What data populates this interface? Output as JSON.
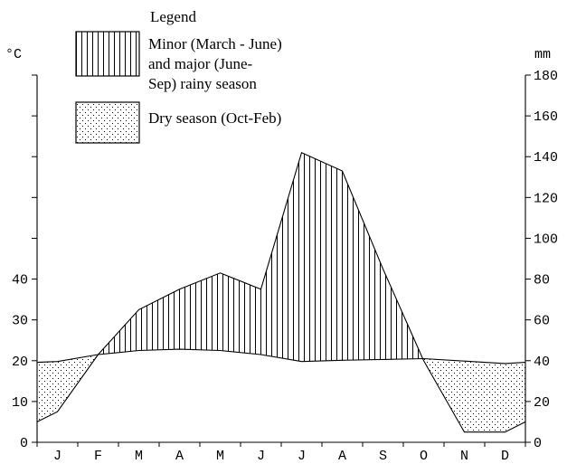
{
  "chart_data": {
    "type": "climate-diagram",
    "title": "",
    "left_unit": "°C",
    "right_unit": "mm",
    "months": [
      "J",
      "F",
      "M",
      "A",
      "M",
      "J",
      "J",
      "A",
      "S",
      "O",
      "N",
      "D"
    ],
    "left_ticks": [
      "0",
      "10",
      "20",
      "30",
      "40"
    ],
    "right_ticks": [
      "0",
      "20",
      "40",
      "60",
      "80",
      "100",
      "120",
      "140",
      "160",
      "180"
    ],
    "left_range": [
      0,
      90
    ],
    "right_range": [
      0,
      180
    ],
    "grid": false,
    "series": [
      {
        "kind": "temperature",
        "axis": "left",
        "x": [
          0,
          0.5,
          1.5,
          2.5,
          3.5,
          4.5,
          5.5,
          6.5,
          7.5,
          8.5,
          9.5,
          10.5,
          11.5,
          12
        ],
        "values": [
          19.6,
          19.8,
          21.5,
          22.5,
          22.8,
          22.5,
          21.5,
          19.8,
          20.1,
          20.3,
          20.5,
          19.9,
          19.3,
          19.6
        ]
      },
      {
        "kind": "precipitation",
        "axis": "right",
        "x": [
          0,
          0.5,
          1.5,
          2.5,
          3.5,
          4.5,
          5.5,
          6.5,
          7.5,
          8.5,
          9.5,
          10.5,
          11.5,
          12
        ],
        "values": [
          10,
          15,
          43,
          65,
          75,
          83,
          75,
          142,
          133,
          85,
          40,
          5,
          5,
          10
        ]
      }
    ],
    "legend": {
      "position": "top-left",
      "title": "Legend",
      "rainy_label": [
        "Minor (March - June)",
        "and major (June-",
        "Sep) rainy season"
      ],
      "dry_label": "Dry season (Oct-Feb)"
    }
  }
}
